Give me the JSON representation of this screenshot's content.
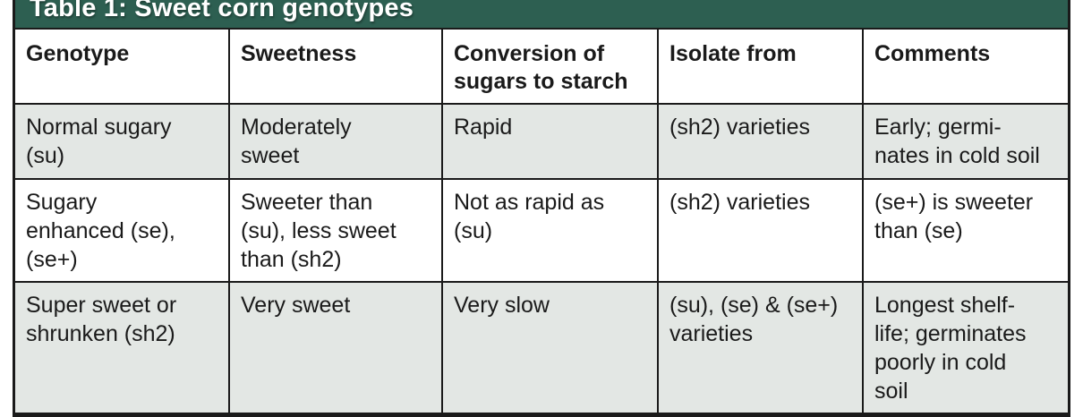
{
  "title_bar": {
    "title": "Table 1: Sweet corn genotypes"
  },
  "table": {
    "columns": [
      "Genotype",
      "Sweetness",
      "Conversion of\nsugars to starch",
      "Isolate from",
      "Comments"
    ],
    "rows": [
      [
        "Normal sugary\n(su)",
        "Moderately\nsweet",
        "Rapid",
        "(sh2) varieties",
        "Early; germi-\nnates in cold soil"
      ],
      [
        "Sugary\nenhanced (se),\n(se+)",
        "Sweeter than\n(su), less sweet\nthan (sh2)",
        "Not as rapid as\n(su)",
        "(sh2) varieties",
        "(se+) is sweeter\nthan (se)"
      ],
      [
        "Super sweet or\nshrunken (sh2)",
        "Very sweet",
        "Very slow",
        "(su), (se) & (se+)\nvarieties",
        "Longest shelf-\nlife; germinates\npoorly in cold\nsoil"
      ]
    ]
  },
  "colors": {
    "title_bar_bg": "#2d5f51",
    "title_text": "#ffffff",
    "header_row_bg": "#ffffff",
    "row_alt_bg": "#e3e7e4",
    "row_white_bg": "#ffffff",
    "border": "#1a1a1a",
    "body_text": "#1a1a1a"
  }
}
